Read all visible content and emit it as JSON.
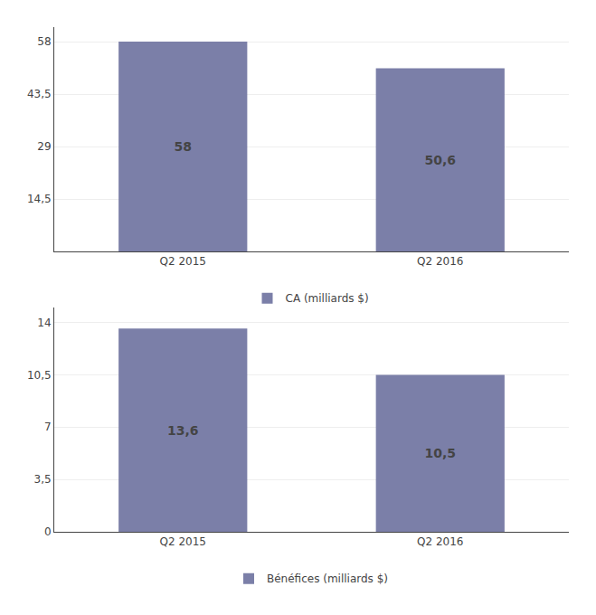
{
  "chart_data": [
    {
      "type": "bar",
      "categories": [
        "Q2 2015",
        "Q2 2016"
      ],
      "series": [
        {
          "name": "CA (milliards $)",
          "color": "#7b7fa8",
          "values": [
            58,
            50.6
          ],
          "value_labels": [
            "58",
            "50,6"
          ]
        }
      ],
      "ylim": [
        0,
        62
      ],
      "yticks": [
        {
          "value": 14.5,
          "label": "14,5"
        },
        29,
        {
          "value": 43.5,
          "label": "43,5"
        },
        58
      ],
      "grid": true,
      "legend": "bottom",
      "data_labels": true
    },
    {
      "type": "bar",
      "categories": [
        "Q2 2015",
        "Q2 2016"
      ],
      "series": [
        {
          "name": "Bénéfices (milliards $)",
          "color": "#7b7fa8",
          "values": [
            13.6,
            10.5
          ],
          "value_labels": [
            "13,6",
            "10,5"
          ]
        }
      ],
      "ylim": [
        0,
        15
      ],
      "yticks": [
        0,
        {
          "value": 3.5,
          "label": "3,5"
        },
        7,
        {
          "value": 10.5,
          "label": "10,5"
        },
        14
      ],
      "grid": true,
      "legend": "bottom",
      "data_labels": true
    }
  ]
}
